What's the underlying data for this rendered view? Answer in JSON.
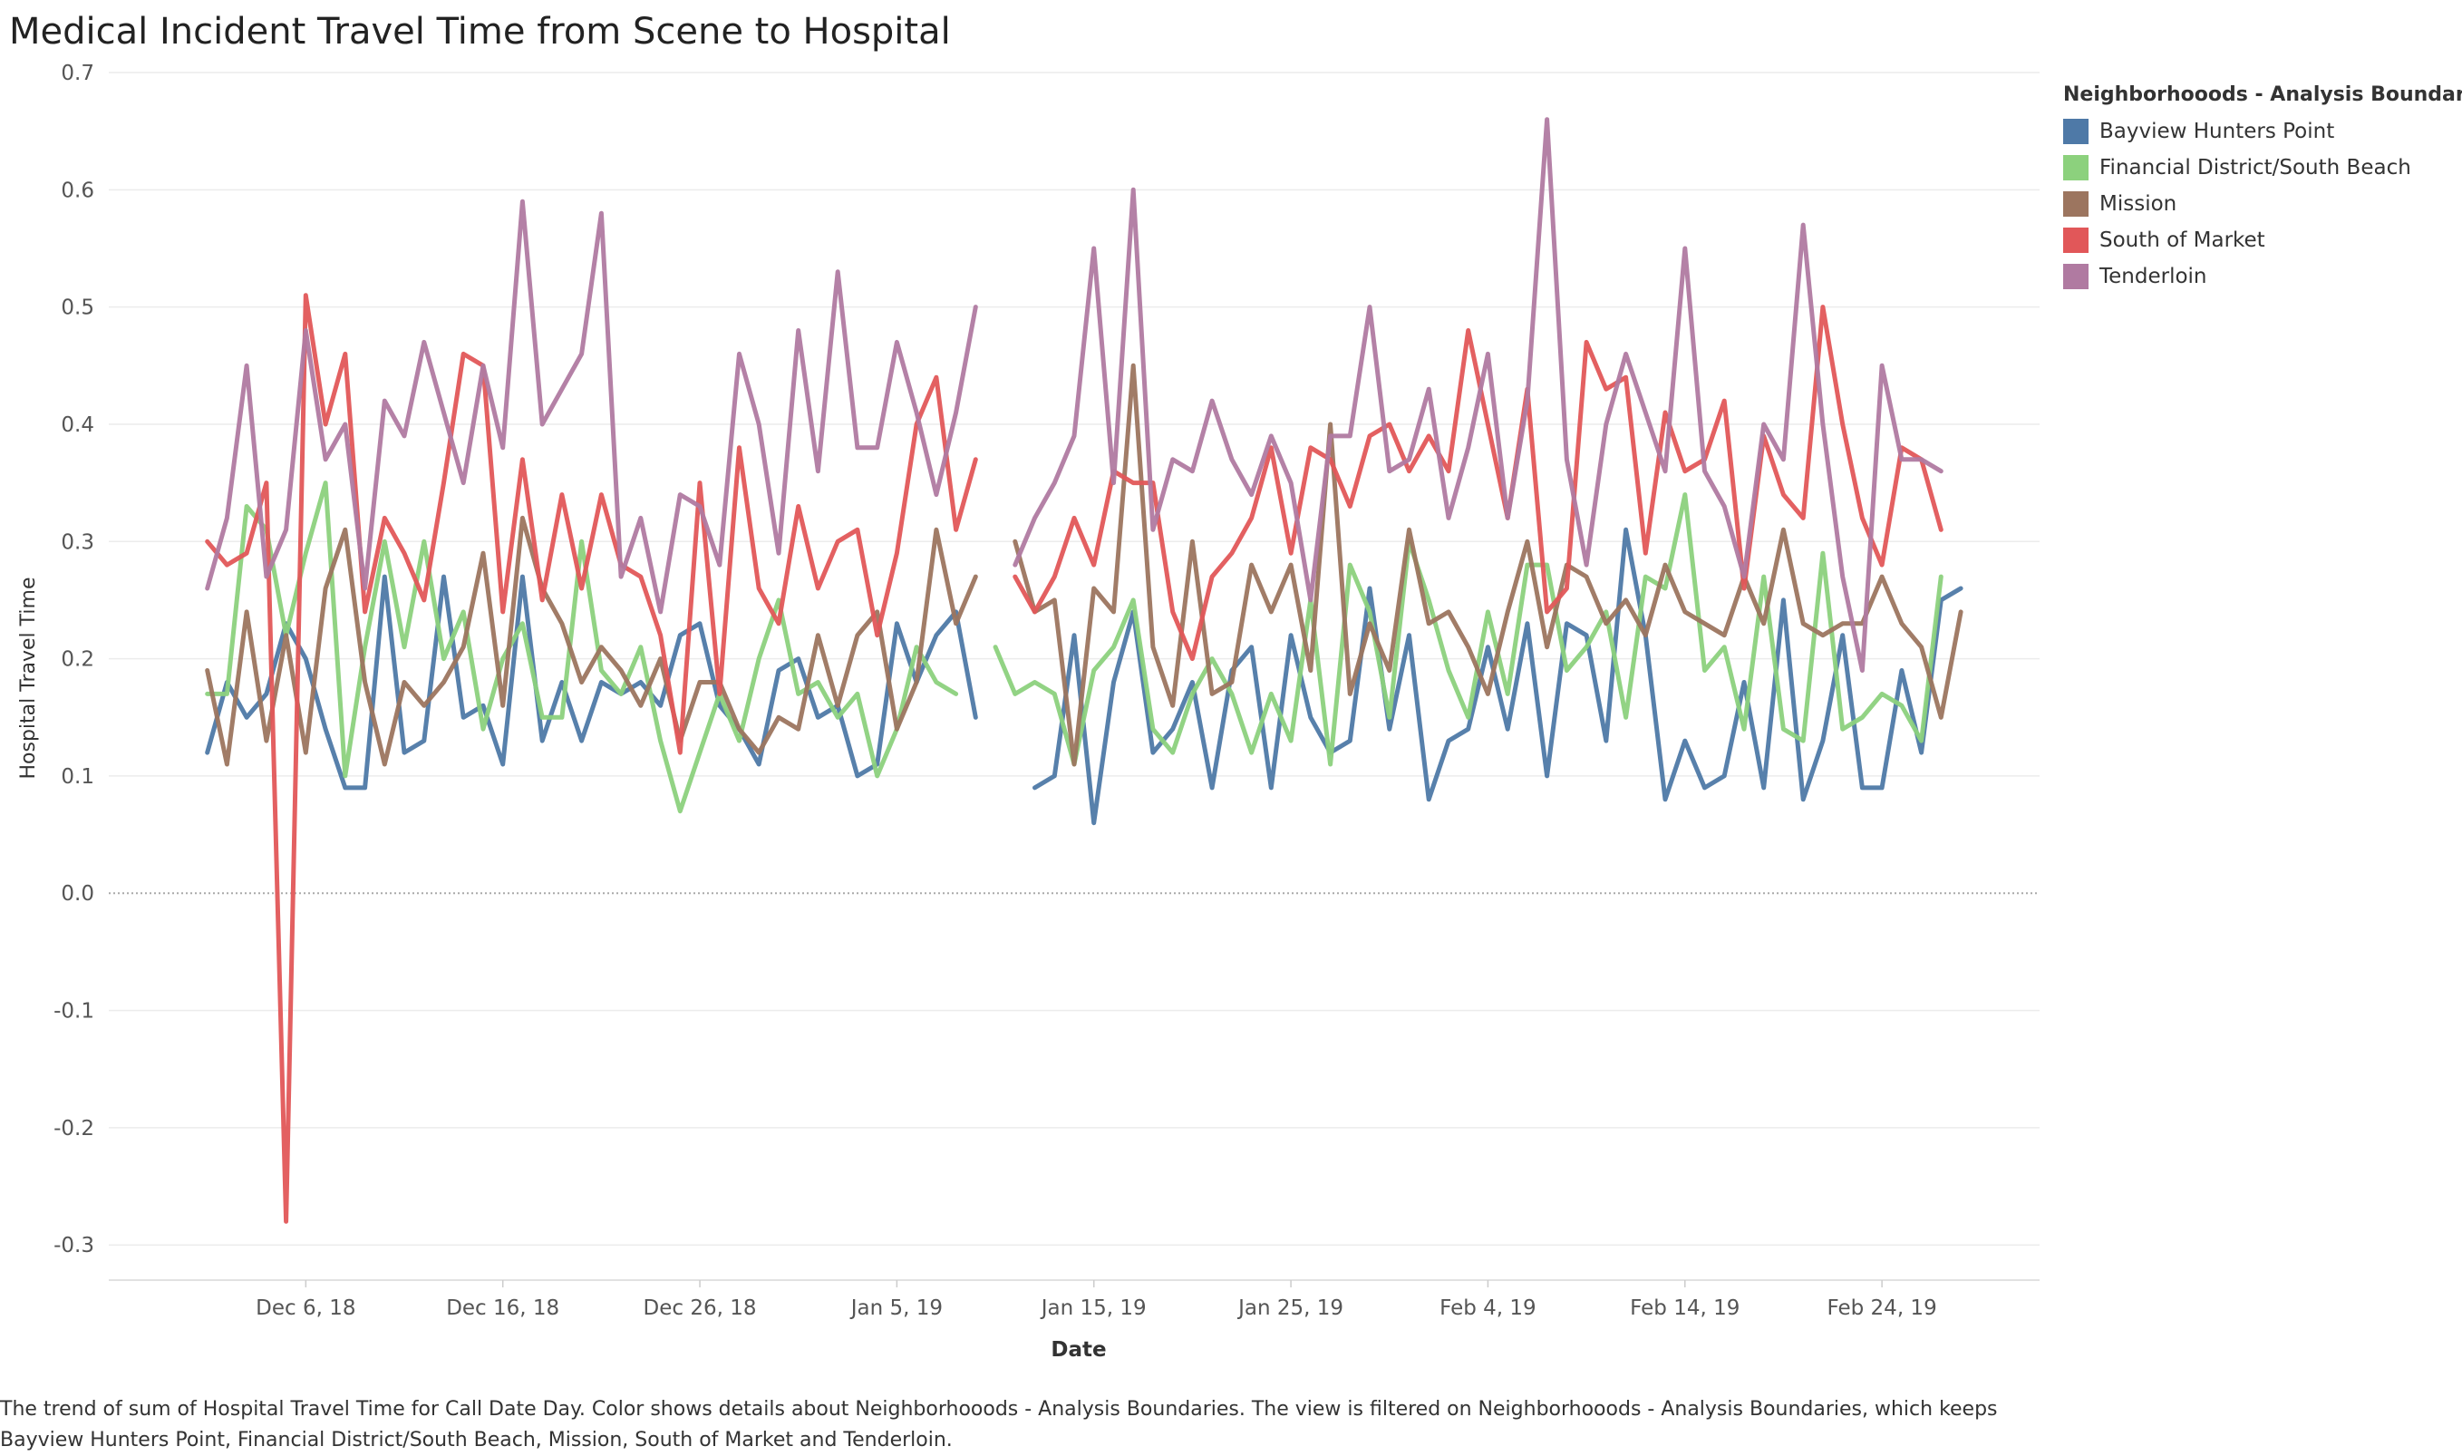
{
  "title": "Medical Incident Travel Time from Scene to Hospital",
  "caption": "The trend of sum of Hospital Travel Time for Call Date Day.  Color shows details about Neighborhooods - Analysis Boundaries. The view is filtered on Neighborhooods - Analysis Boundaries, which keeps Bayview Hunters Point, Financial District/South Beach, Mission, South of Market and Tenderloin.",
  "legend": {
    "title": "Neighborhooods - Analysis Boundaries",
    "placement": "right"
  },
  "chart_data": {
    "type": "line",
    "xlabel": "Date",
    "ylabel": "Hospital Travel Time",
    "x_start": "2018-12-01",
    "x_step_days": 1,
    "xlim": [
      "2018-11-26",
      "2019-03-04"
    ],
    "ylim": [
      -0.33,
      0.7
    ],
    "xticks": [
      {
        "date": "2018-12-06",
        "label": "Dec 6, 18"
      },
      {
        "date": "2018-12-16",
        "label": "Dec 16, 18"
      },
      {
        "date": "2018-12-26",
        "label": "Dec 26, 18"
      },
      {
        "date": "2019-01-05",
        "label": "Jan 5, 19"
      },
      {
        "date": "2019-01-15",
        "label": "Jan 15, 19"
      },
      {
        "date": "2019-01-25",
        "label": "Jan 25, 19"
      },
      {
        "date": "2019-02-04",
        "label": "Feb 4, 19"
      },
      {
        "date": "2019-02-14",
        "label": "Feb 14, 19"
      },
      {
        "date": "2019-02-24",
        "label": "Feb 24, 19"
      }
    ],
    "yticks": [
      {
        "value": 0.7,
        "label": "0.7"
      },
      {
        "value": 0.6,
        "label": "0.6"
      },
      {
        "value": 0.5,
        "label": "0.5"
      },
      {
        "value": 0.4,
        "label": "0.4"
      },
      {
        "value": 0.3,
        "label": "0.3"
      },
      {
        "value": 0.2,
        "label": "0.2"
      },
      {
        "value": 0.1,
        "label": "0.1"
      },
      {
        "value": 0.0,
        "label": "0.0"
      },
      {
        "value": -0.1,
        "label": "-0.1"
      },
      {
        "value": -0.2,
        "label": "-0.2"
      },
      {
        "value": -0.3,
        "label": "-0.3"
      }
    ],
    "grid": true,
    "series": [
      {
        "name": "Bayview Hunters Point",
        "color": "#4e79a7",
        "values": [
          0.12,
          0.18,
          0.15,
          0.17,
          0.23,
          0.2,
          0.14,
          0.09,
          0.09,
          0.27,
          0.12,
          0.13,
          0.27,
          0.15,
          0.16,
          0.11,
          0.27,
          0.13,
          0.18,
          0.13,
          0.18,
          0.17,
          0.18,
          0.16,
          0.22,
          0.23,
          0.16,
          0.14,
          0.11,
          0.19,
          0.2,
          0.15,
          0.16,
          0.1,
          0.11,
          0.23,
          0.18,
          0.22,
          0.24,
          0.15,
          null,
          null,
          0.09,
          0.1,
          0.22,
          0.06,
          0.18,
          0.24,
          0.12,
          0.14,
          0.18,
          0.09,
          0.19,
          0.21,
          0.09,
          0.22,
          0.15,
          0.12,
          0.13,
          0.26,
          0.14,
          0.22,
          0.08,
          0.13,
          0.14,
          0.21,
          0.14,
          0.23,
          0.1,
          0.23,
          0.22,
          0.13,
          0.31,
          0.22,
          0.08,
          0.13,
          0.09,
          0.1,
          0.18,
          0.09,
          0.25,
          0.08,
          0.13,
          0.22,
          0.09,
          0.09,
          0.19,
          0.12,
          0.25,
          0.26
        ]
      },
      {
        "name": "Financial District/South Beach",
        "color": "#8cd17d",
        "values": [
          0.17,
          0.17,
          0.33,
          0.31,
          0.22,
          0.29,
          0.35,
          0.1,
          0.21,
          0.3,
          0.21,
          0.3,
          0.2,
          0.24,
          0.14,
          0.2,
          0.23,
          0.15,
          0.15,
          0.3,
          0.19,
          0.17,
          0.21,
          0.13,
          0.07,
          0.12,
          0.17,
          0.13,
          0.2,
          0.25,
          0.17,
          0.18,
          0.15,
          0.17,
          0.1,
          0.14,
          0.21,
          0.18,
          0.17,
          null,
          0.21,
          0.17,
          0.18,
          0.17,
          0.11,
          0.19,
          0.21,
          0.25,
          0.14,
          0.12,
          0.17,
          0.2,
          0.17,
          0.12,
          0.17,
          0.13,
          0.25,
          0.11,
          0.28,
          0.24,
          0.15,
          0.3,
          0.25,
          0.19,
          0.15,
          0.24,
          0.17,
          0.28,
          0.28,
          0.19,
          0.21,
          0.24,
          0.15,
          0.27,
          0.26,
          0.34,
          0.19,
          0.21,
          0.14,
          0.27,
          0.14,
          0.13,
          0.29,
          0.14,
          0.15,
          0.17,
          0.16,
          0.13,
          0.27
        ]
      },
      {
        "name": "Mission",
        "color": "#9c755f",
        "values": [
          0.19,
          0.11,
          0.24,
          0.13,
          0.22,
          0.12,
          0.26,
          0.31,
          0.18,
          0.11,
          0.18,
          0.16,
          0.18,
          0.21,
          0.29,
          0.16,
          0.32,
          0.26,
          0.23,
          0.18,
          0.21,
          0.19,
          0.16,
          0.2,
          0.13,
          0.18,
          0.18,
          0.14,
          0.12,
          0.15,
          0.14,
          0.22,
          0.16,
          0.22,
          0.24,
          0.14,
          0.18,
          0.31,
          0.23,
          0.27,
          null,
          0.3,
          0.24,
          0.25,
          0.11,
          0.26,
          0.24,
          0.45,
          0.21,
          0.16,
          0.3,
          0.17,
          0.18,
          0.28,
          0.24,
          0.28,
          0.19,
          0.4,
          0.17,
          0.23,
          0.19,
          0.31,
          0.23,
          0.24,
          0.21,
          0.17,
          0.24,
          0.3,
          0.21,
          0.28,
          0.27,
          0.23,
          0.25,
          0.22,
          0.28,
          0.24,
          0.23,
          0.22,
          0.27,
          0.23,
          0.31,
          0.23,
          0.22,
          0.23,
          0.23,
          0.27,
          0.23,
          0.21,
          0.15,
          0.24
        ]
      },
      {
        "name": "South of Market",
        "color": "#e15759",
        "values": [
          0.3,
          0.28,
          0.29,
          0.35,
          -0.28,
          0.51,
          0.4,
          0.46,
          0.24,
          0.32,
          0.29,
          0.25,
          0.35,
          0.46,
          0.45,
          0.24,
          0.37,
          0.25,
          0.34,
          0.26,
          0.34,
          0.28,
          0.27,
          0.22,
          0.12,
          0.35,
          0.17,
          0.38,
          0.26,
          0.23,
          0.33,
          0.26,
          0.3,
          0.31,
          0.22,
          0.29,
          0.4,
          0.44,
          0.31,
          0.37,
          null,
          0.27,
          0.24,
          0.27,
          0.32,
          0.28,
          0.36,
          0.35,
          0.35,
          0.24,
          0.2,
          0.27,
          0.29,
          0.32,
          0.38,
          0.29,
          0.38,
          0.37,
          0.33,
          0.39,
          0.4,
          0.36,
          0.39,
          0.36,
          0.48,
          0.4,
          0.32,
          0.43,
          0.24,
          0.26,
          0.47,
          0.43,
          0.44,
          0.29,
          0.41,
          0.36,
          0.37,
          0.42,
          0.26,
          0.39,
          0.34,
          0.32,
          0.5,
          0.4,
          0.32,
          0.28,
          0.38,
          0.37,
          0.31
        ]
      },
      {
        "name": "Tenderloin",
        "color": "#b07aa1",
        "values": [
          0.26,
          0.32,
          0.45,
          0.27,
          0.31,
          0.48,
          0.37,
          0.4,
          0.26,
          0.42,
          0.39,
          0.47,
          0.41,
          0.35,
          0.45,
          0.38,
          0.59,
          0.4,
          0.43,
          0.46,
          0.58,
          0.27,
          0.32,
          0.24,
          0.34,
          0.33,
          0.28,
          0.46,
          0.4,
          0.29,
          0.48,
          0.36,
          0.53,
          0.38,
          0.38,
          0.47,
          0.41,
          0.34,
          0.41,
          0.5,
          null,
          0.28,
          0.32,
          0.35,
          0.39,
          0.55,
          0.35,
          0.6,
          0.31,
          0.37,
          0.36,
          0.42,
          0.37,
          0.34,
          0.39,
          0.35,
          0.25,
          0.39,
          0.39,
          0.5,
          0.36,
          0.37,
          0.43,
          0.32,
          0.38,
          0.46,
          0.32,
          0.42,
          0.66,
          0.37,
          0.28,
          0.4,
          0.46,
          0.41,
          0.36,
          0.55,
          0.36,
          0.33,
          0.27,
          0.4,
          0.37,
          0.57,
          0.4,
          0.27,
          0.19,
          0.45,
          0.37,
          0.37,
          0.36
        ]
      }
    ]
  }
}
